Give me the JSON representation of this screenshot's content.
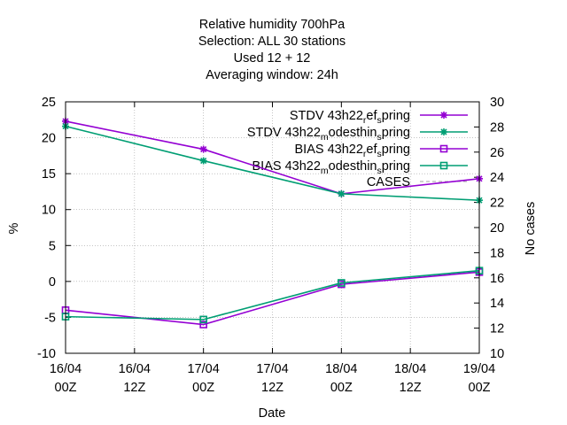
{
  "chart_data": {
    "type": "line",
    "title_lines": [
      "Relative humidity 700hPa",
      "Selection: ALL     30 stations",
      "Used  12  + 12",
      "Averaging window: 24h"
    ],
    "xlabel": "Date",
    "ylabel": "%",
    "y2label": "No cases",
    "ylim": [
      -10,
      25
    ],
    "y2lim": [
      10,
      30
    ],
    "grid": true,
    "legend_position": "top-right",
    "x_ticks": [
      {
        "line1": "16/04",
        "line2": "00Z"
      },
      {
        "line1": "16/04",
        "line2": "12Z"
      },
      {
        "line1": "17/04",
        "line2": "00Z"
      },
      {
        "line1": "17/04",
        "line2": "12Z"
      },
      {
        "line1": "18/04",
        "line2": "00Z"
      },
      {
        "line1": "18/04",
        "line2": "12Z"
      },
      {
        "line1": "19/04",
        "line2": "00Z"
      }
    ],
    "y_ticks": [
      "-10",
      "-5",
      "0",
      "5",
      "10",
      "15",
      "20",
      "25"
    ],
    "y2_ticks": [
      "10",
      "12",
      "14",
      "16",
      "18",
      "20",
      "22",
      "24",
      "26",
      "28",
      "30"
    ],
    "x_positions": [
      0,
      2,
      4,
      6
    ],
    "series": [
      {
        "legend": {
          "pre": "STDV 43h22",
          "sub1": "r",
          "mid": "ef",
          "sub2": "s",
          "post": "pring"
        },
        "color": "#9400d3",
        "marker": "star",
        "values": [
          22.3,
          18.4,
          12.2,
          14.3
        ]
      },
      {
        "legend": {
          "pre": "STDV 43h22",
          "sub1": "m",
          "mid": "odesthin",
          "sub2": "s",
          "post": "pring"
        },
        "color": "#009e73",
        "marker": "star",
        "values": [
          21.6,
          16.8,
          12.2,
          11.3
        ]
      },
      {
        "legend": {
          "pre": "BIAS 43h22",
          "sub1": "r",
          "mid": "ef",
          "sub2": "s",
          "post": "pring"
        },
        "color": "#9400d3",
        "marker": "square",
        "values": [
          -4.0,
          -6.0,
          -0.4,
          1.3
        ]
      },
      {
        "legend": {
          "pre": "BIAS 43h22",
          "sub1": "m",
          "mid": "odesthin",
          "sub2": "s",
          "post": "pring"
        },
        "color": "#009e73",
        "marker": "square",
        "values": [
          -4.9,
          -5.3,
          -0.2,
          1.5
        ]
      }
    ],
    "cases": {
      "legend": "CASES",
      "color": "#a0a0a0",
      "values": [
        30,
        30,
        30,
        30
      ]
    }
  }
}
